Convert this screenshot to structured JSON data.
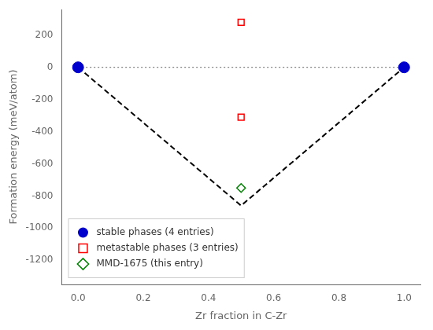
{
  "chart_data": {
    "type": "scatter",
    "xlabel": "Zr fraction in C-Zr",
    "ylabel": "Formation energy (meV/atom)",
    "xlim": [
      -0.05,
      1.05
    ],
    "ylim": [
      -1350,
      360
    ],
    "xticks": [
      {
        "value": 0.0,
        "label": "0.0"
      },
      0.2,
      0.4,
      0.6,
      0.8,
      {
        "value": 1.0,
        "label": "1.0"
      }
    ],
    "yticks": [
      -1200,
      -1000,
      -800,
      -600,
      -400,
      -200,
      0,
      200
    ],
    "grid": false,
    "legend": "lower left",
    "series": [
      {
        "type": "line",
        "color": "gray",
        "line_style": "dotted",
        "x": [
          0.0,
          1.0
        ],
        "values": [
          0.0,
          0.0
        ]
      },
      {
        "type": "line",
        "color": "black",
        "line_style": "dashed",
        "x": [
          0.0,
          0.5,
          1.0
        ],
        "values": [
          0.0,
          -860,
          0.0
        ]
      },
      {
        "type": "scatter",
        "name": "stable phases (4 entries)",
        "color": "#0000cc",
        "marker": "circle",
        "x": [
          0.0,
          1.0
        ],
        "values": [
          0.0,
          0.0
        ]
      },
      {
        "type": "scatter",
        "name": "metastable phases (3 entries)",
        "color": "red",
        "marker": "open square",
        "x": [
          0.5,
          0.5
        ],
        "values": [
          280,
          -310
        ]
      },
      {
        "type": "scatter",
        "name": "MMD-1675 (this entry)",
        "color": "green",
        "marker": "open diamond",
        "x": [
          0.5
        ],
        "values": [
          -750
        ]
      }
    ]
  }
}
